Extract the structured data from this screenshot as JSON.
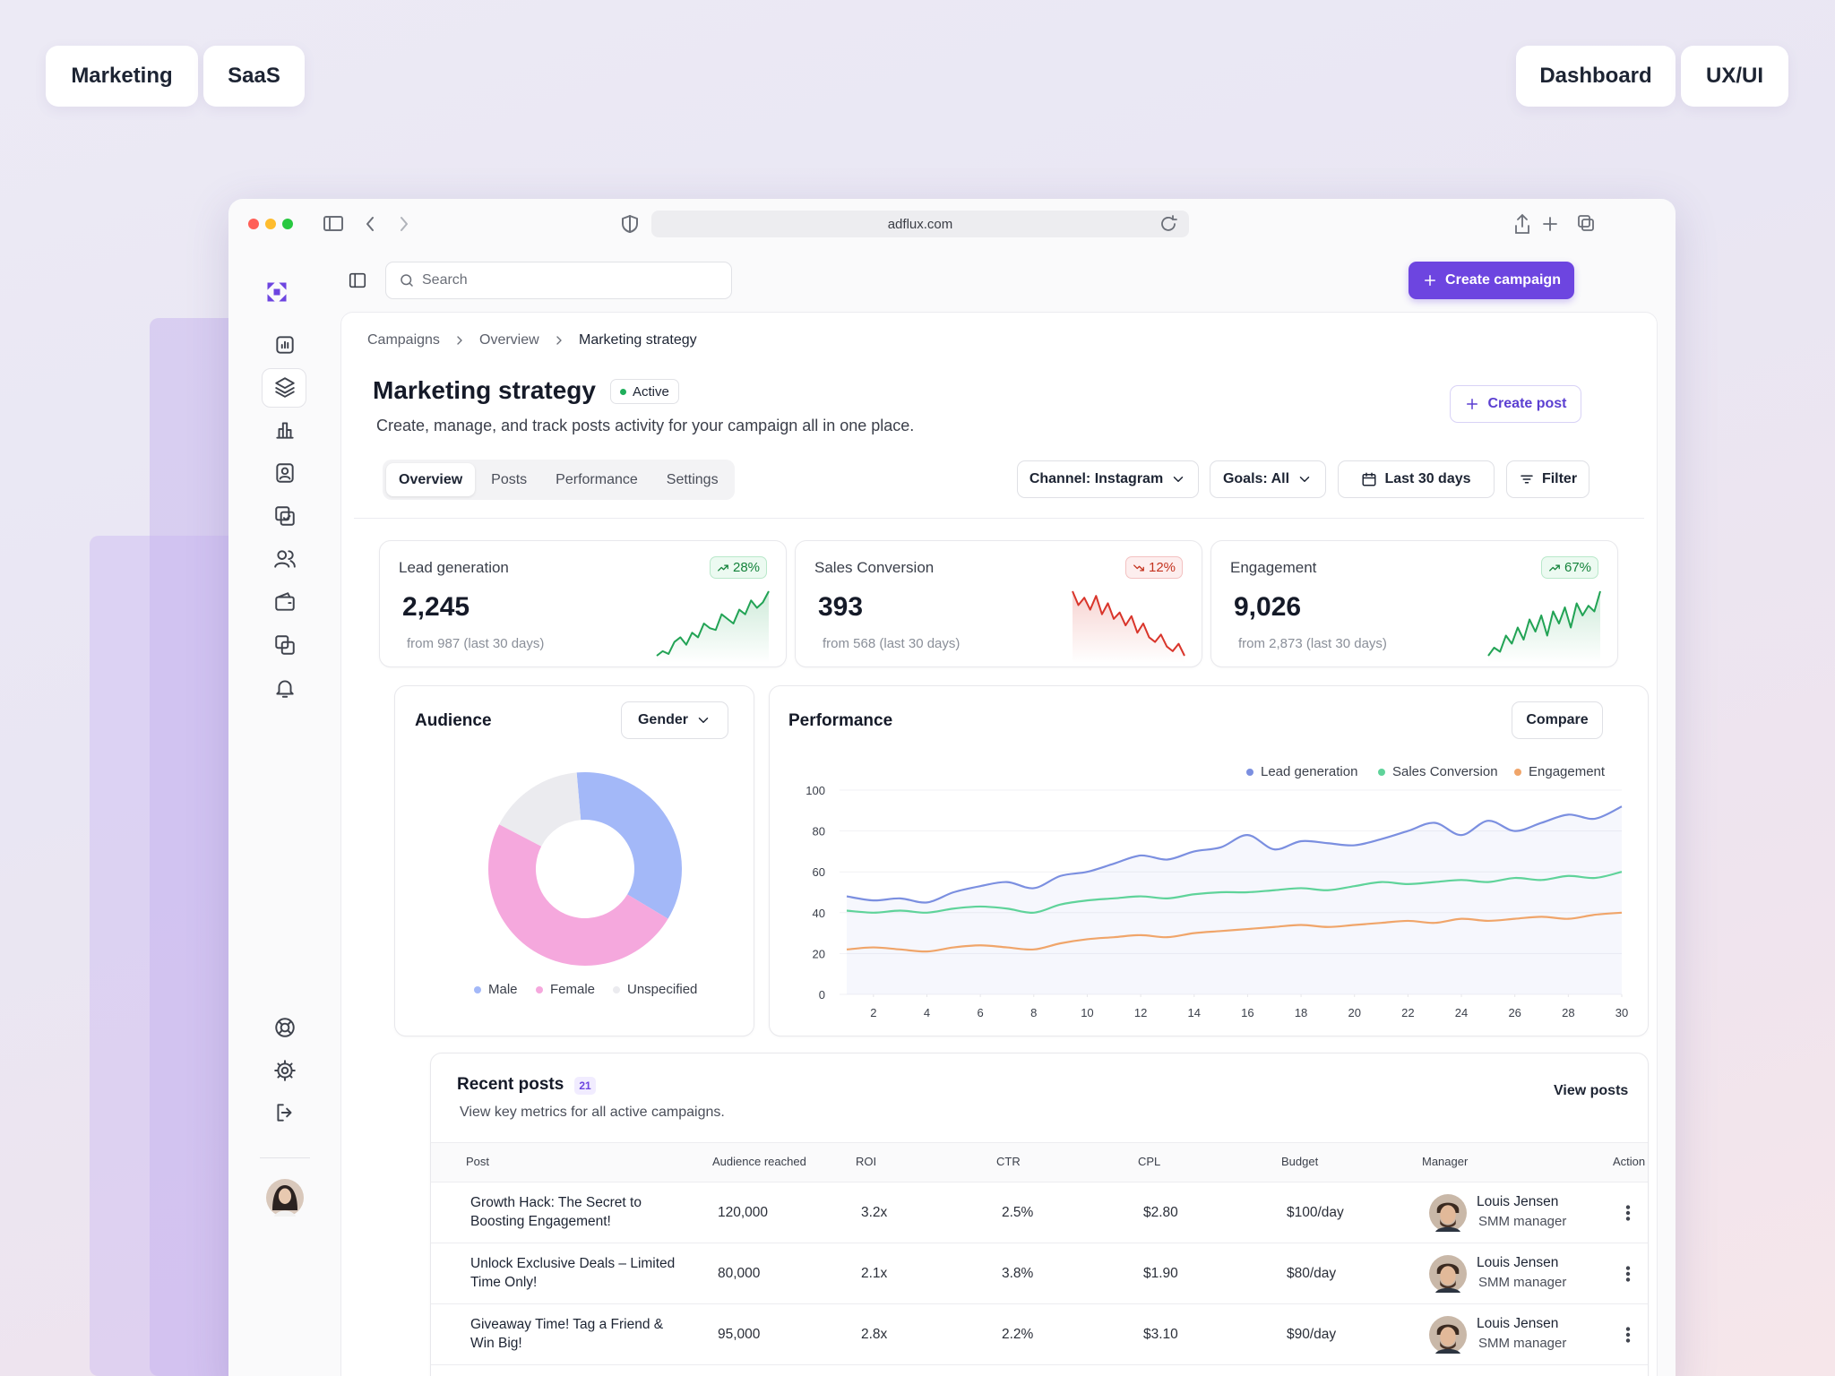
{
  "tags": [
    "Marketing",
    "SaaS",
    "Dashboard",
    "UX/UI"
  ],
  "browser": {
    "url": "adflux.com"
  },
  "search_placeholder": "Search",
  "create_campaign": "Create campaign",
  "breadcrumb": [
    "Campaigns",
    "Overview",
    "Marketing strategy"
  ],
  "page": {
    "title": "Marketing strategy",
    "status": "Active",
    "description": "Create, manage, and track posts activity for your campaign all in one place.",
    "create_post": "Create post"
  },
  "tabs": [
    "Overview",
    "Posts",
    "Performance",
    "Settings"
  ],
  "filters": [
    "Channel: Instagram",
    "Goals: All",
    "Last 30 days",
    "Filter"
  ],
  "kpis": [
    {
      "title": "Lead generation",
      "value": "2,245",
      "change": "28%",
      "trend": "up",
      "note": "from 987 (last 30 days)",
      "spark": [
        10,
        15,
        12,
        25,
        30,
        22,
        35,
        30,
        45,
        40,
        38,
        55,
        50,
        45,
        60,
        55,
        70,
        62,
        68,
        80
      ]
    },
    {
      "title": "Sales Conversion",
      "value": "393",
      "change": "12%",
      "trend": "down",
      "note": "from 568 (last 30 days)",
      "spark": [
        85,
        70,
        78,
        65,
        80,
        60,
        72,
        55,
        62,
        48,
        58,
        40,
        50,
        35,
        30,
        38,
        25,
        20,
        28,
        15
      ]
    },
    {
      "title": "Engagement",
      "value": "9,026",
      "change": "67%",
      "trend": "up",
      "note": "from 2,873 (last 30 days)",
      "spark": [
        10,
        20,
        15,
        35,
        25,
        45,
        30,
        55,
        40,
        60,
        35,
        65,
        50,
        70,
        45,
        75,
        60,
        72,
        65,
        90
      ]
    }
  ],
  "chart_data": [
    {
      "type": "pie",
      "title": "Audience",
      "dropdown": "Gender",
      "categories": [
        "Male",
        "Female",
        "Unspecified"
      ],
      "values": [
        35,
        49,
        16
      ],
      "colors": [
        "#a3b8f8",
        "#f5a8dd",
        "#ebebef"
      ]
    },
    {
      "type": "line",
      "title": "Performance",
      "button": "Compare",
      "x": [
        1,
        2,
        3,
        4,
        5,
        6,
        7,
        8,
        9,
        10,
        11,
        12,
        13,
        14,
        15,
        16,
        17,
        18,
        19,
        20,
        21,
        22,
        23,
        24,
        25,
        26,
        27,
        28,
        29,
        30
      ],
      "xlim": [
        1,
        30
      ],
      "xticks": [
        2,
        4,
        6,
        8,
        10,
        12,
        14,
        16,
        18,
        20,
        22,
        24,
        26,
        28,
        30
      ],
      "ylim": [
        0,
        100
      ],
      "yticks": [
        0,
        20,
        40,
        60,
        80,
        100
      ],
      "grid": true,
      "series": [
        {
          "name": "Lead generation",
          "color": "#7b8fe0",
          "area": true,
          "values": [
            48,
            46,
            47,
            45,
            50,
            53,
            55,
            52,
            58,
            60,
            64,
            68,
            66,
            70,
            72,
            78,
            71,
            75,
            74,
            73,
            76,
            80,
            84,
            78,
            85,
            80,
            84,
            88,
            86,
            92
          ]
        },
        {
          "name": "Sales Conversion",
          "color": "#5fd39a",
          "values": [
            41,
            40,
            41,
            40,
            42,
            43,
            42,
            40,
            44,
            46,
            47,
            48,
            47,
            49,
            50,
            50,
            51,
            52,
            51,
            53,
            55,
            54,
            55,
            56,
            55,
            57,
            56,
            58,
            57,
            60
          ]
        },
        {
          "name": "Engagement",
          "color": "#f0a56a",
          "values": [
            22,
            23,
            22,
            21,
            23,
            24,
            23,
            22,
            25,
            27,
            28,
            29,
            28,
            30,
            31,
            32,
            33,
            34,
            33,
            34,
            35,
            36,
            35,
            37,
            36,
            37,
            38,
            37,
            39,
            40
          ]
        }
      ]
    }
  ],
  "recent_posts": {
    "title": "Recent posts",
    "count": 21,
    "subtitle": "View key metrics for all active campaigns.",
    "link": "View posts",
    "columns": [
      "Post",
      "Audience reached",
      "ROI",
      "CTR",
      "CPL",
      "Budget",
      "Manager",
      "Action"
    ],
    "rows": [
      [
        "Growth Hack: The Secret to Boosting Engagement!",
        "120,000",
        "3.2x",
        "2.5%",
        "$2.80",
        "$100/day",
        {
          "name": "Louis Jensen",
          "role": "SMM manager"
        }
      ],
      [
        "Unlock Exclusive Deals – Limited Time Only!",
        "80,000",
        "2.1x",
        "3.8%",
        "$1.90",
        "$80/day",
        {
          "name": "Louis Jensen",
          "role": "SMM manager"
        }
      ],
      [
        "Giveaway Time! Tag a Friend & Win Big!",
        "95,000",
        "2.8x",
        "2.2%",
        "$3.10",
        "$90/day",
        {
          "name": "Louis Jensen",
          "role": "SMM manager"
        }
      ]
    ]
  }
}
